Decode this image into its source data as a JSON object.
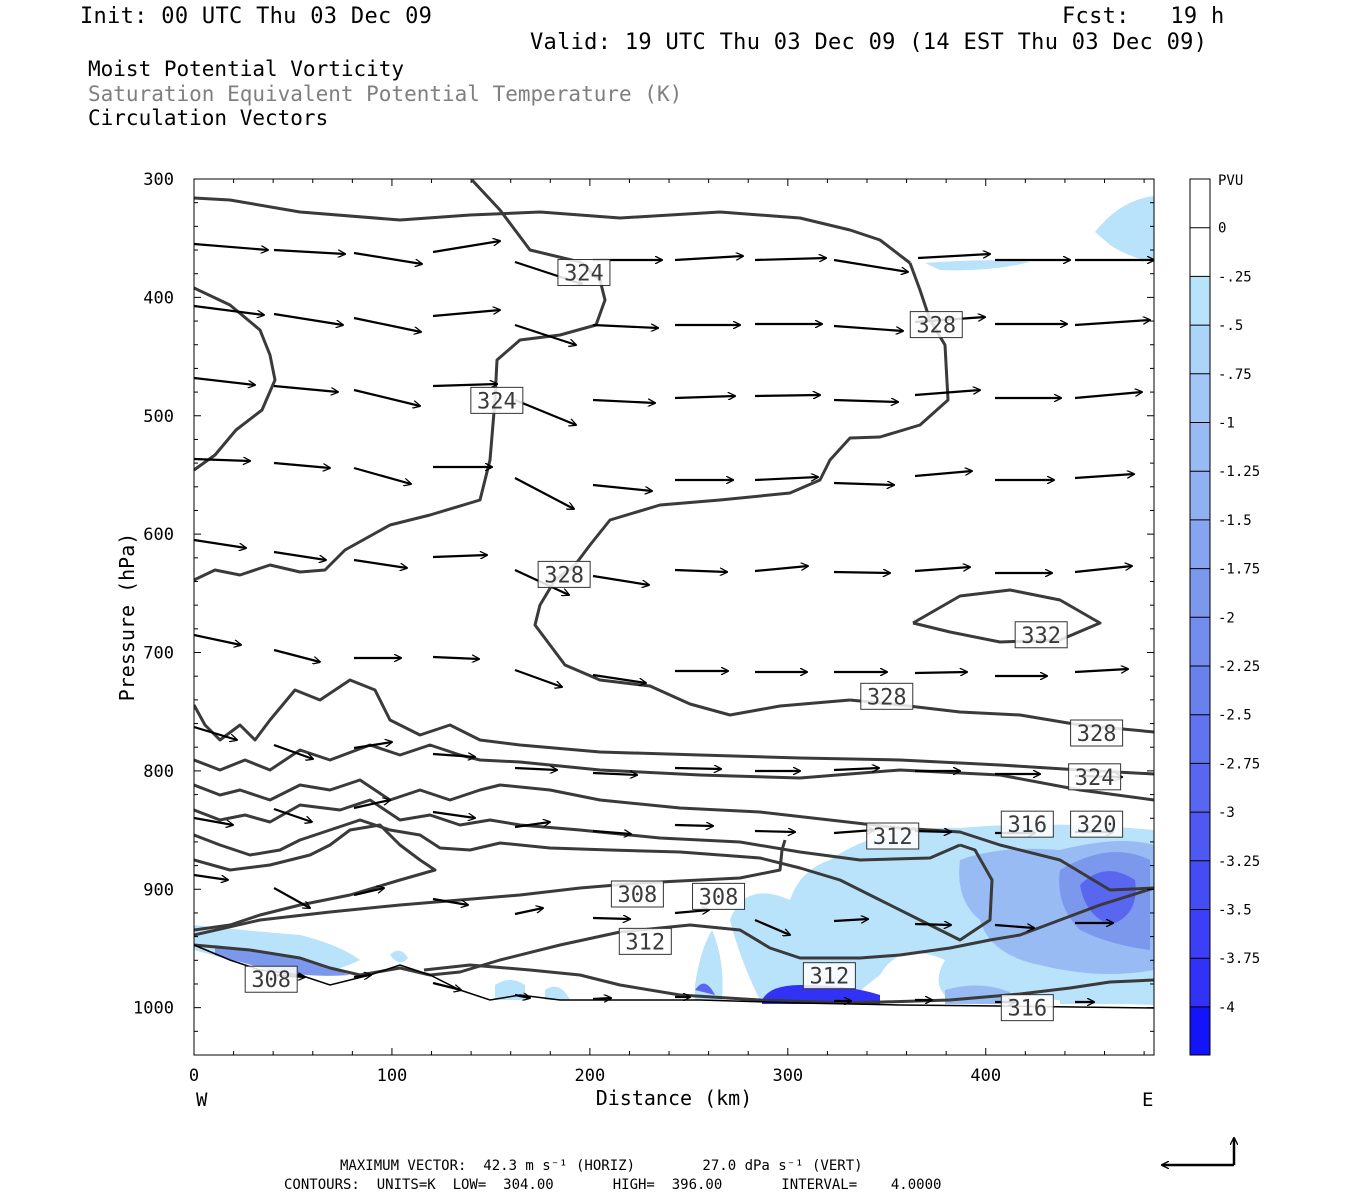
{
  "header": {
    "init": "Init: 00 UTC Thu 03 Dec 09",
    "fcst": "Fcst:   19 h",
    "valid": "Valid: 19 UTC Thu 03 Dec 09 (14 EST Thu 03 Dec 09)"
  },
  "fields": {
    "field1": "Moist Potential Vorticity",
    "field2": "Saturation Equivalent Potential Temperature (K)",
    "field3": "Circulation Vectors"
  },
  "footer": {
    "vector_line": "MAXIMUM VECTOR:  42.3 m s⁻¹ (HORIZ)        27.0 dPa s⁻¹ (VERT)",
    "contour_line": "CONTOURS:  UNITS=K  LOW=  304.00       HIGH=  396.00       INTERVAL=    4.0000"
  },
  "colors": {
    "contour": "#3a3a3a",
    "vector": "#000000",
    "frame": "#000000"
  },
  "chart_data": {
    "type": "heatmap",
    "xlabel": "Distance (km)",
    "ylabel": "Pressure (hPa)",
    "xlim": [
      0,
      485
    ],
    "ylim": [
      1040,
      300
    ],
    "x_ticks": [
      "0",
      "100",
      "200",
      "300",
      "400"
    ],
    "x_tick_values": [
      0,
      100,
      200,
      300,
      400
    ],
    "y_ticks": [
      "300",
      "400",
      "500",
      "600",
      "700",
      "800",
      "900",
      "1000"
    ],
    "y_tick_values": [
      300,
      400,
      500,
      600,
      700,
      800,
      900,
      1000
    ],
    "left_edge_label": "W",
    "right_edge_label": "E",
    "colorbar": {
      "unit": "PVU",
      "labels": [
        "0",
        "-.25",
        "-.5",
        "-.75",
        "-1",
        "-1.25",
        "-1.5",
        "-1.75",
        "-2",
        "-2.25",
        "-2.5",
        "-2.75",
        "-3",
        "-3.25",
        "-3.5",
        "-3.75",
        "-4"
      ],
      "colors": [
        "#ffffff",
        "#ffffff",
        "#b9e2fb",
        "#acd3f8",
        "#a2c6f5",
        "#98bbf3",
        "#8fb0f1",
        "#86a4ef",
        "#7c98ed",
        "#738ced",
        "#6a80ed",
        "#6173ee",
        "#5866f0",
        "#4f59f1",
        "#454cf3",
        "#3c3ff5",
        "#3232f7",
        "#1414fb"
      ]
    },
    "contour_labels": [
      {
        "text": "324",
        "x": 197,
        "p": 379
      },
      {
        "text": "328",
        "x": 375,
        "p": 423
      },
      {
        "text": "324",
        "x": 153,
        "p": 487
      },
      {
        "text": "328",
        "x": 187,
        "p": 634
      },
      {
        "text": "332",
        "x": 428,
        "p": 685
      },
      {
        "text": "328",
        "x": 350,
        "p": 737
      },
      {
        "text": "328",
        "x": 456,
        "p": 768
      },
      {
        "text": "324",
        "x": 455,
        "p": 805
      },
      {
        "text": "316",
        "x": 421,
        "p": 845
      },
      {
        "text": "320",
        "x": 456,
        "p": 845
      },
      {
        "text": "312",
        "x": 353,
        "p": 855
      },
      {
        "text": "308",
        "x": 224,
        "p": 904
      },
      {
        "text": "308",
        "x": 265,
        "p": 906
      },
      {
        "text": "312",
        "x": 228,
        "p": 944
      },
      {
        "text": "312",
        "x": 321,
        "p": 973
      },
      {
        "text": "308",
        "x": 39,
        "p": 976
      },
      {
        "text": "316",
        "x": 421,
        "p": 1000
      }
    ]
  }
}
